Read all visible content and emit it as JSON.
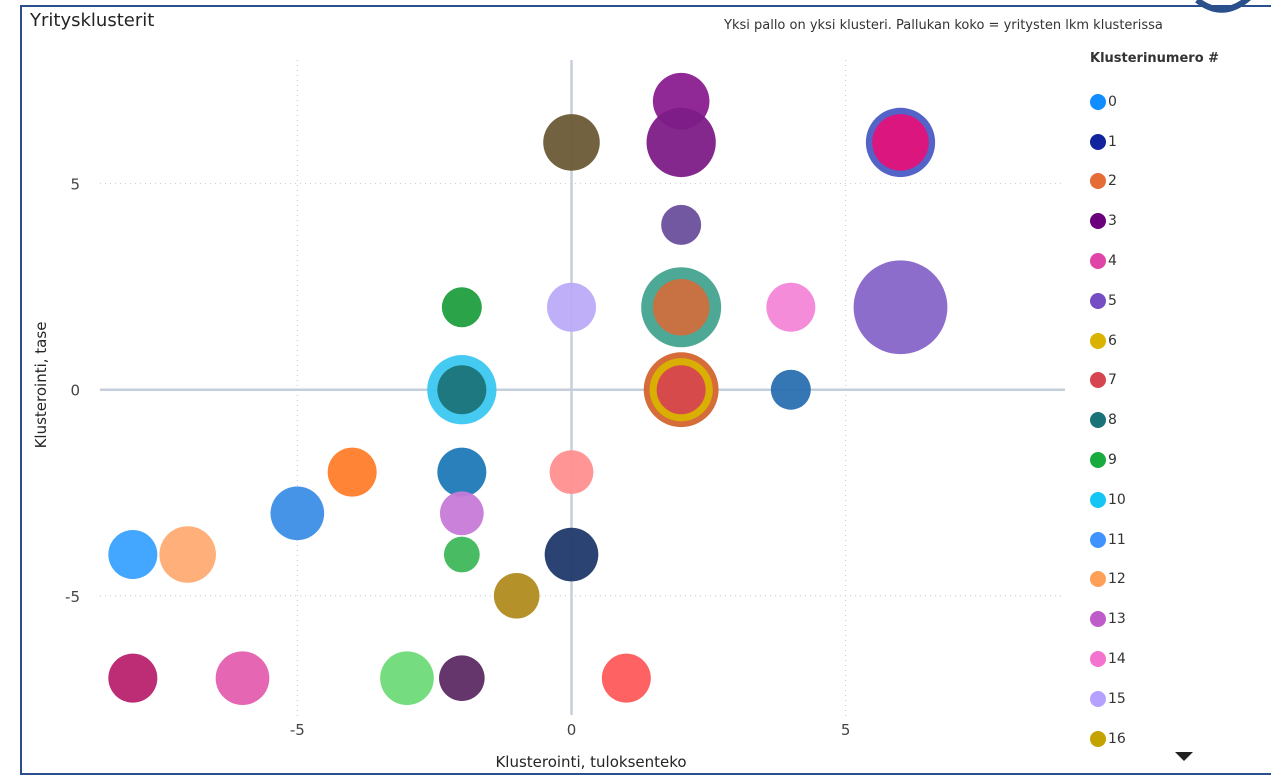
{
  "header": {
    "title": "Yritysklusterit",
    "subtitle": "Yksi pallo on yksi klusteri. Pallukan koko = yritysten lkm klusterissa"
  },
  "legend": {
    "title": "Klusterinumero #",
    "items": [
      {
        "label": "0",
        "color": "#118dff"
      },
      {
        "label": "1",
        "color": "#12239e"
      },
      {
        "label": "2",
        "color": "#e66c37"
      },
      {
        "label": "3",
        "color": "#6b007b"
      },
      {
        "label": "4",
        "color": "#e044a7"
      },
      {
        "label": "5",
        "color": "#744ec2"
      },
      {
        "label": "6",
        "color": "#d9b300"
      },
      {
        "label": "7",
        "color": "#d64550"
      },
      {
        "label": "8",
        "color": "#197278"
      },
      {
        "label": "9",
        "color": "#1aab40"
      },
      {
        "label": "10",
        "color": "#15c6f4"
      },
      {
        "label": "11",
        "color": "#4092ff"
      },
      {
        "label": "12",
        "color": "#ffa058"
      },
      {
        "label": "13",
        "color": "#be5dc9"
      },
      {
        "label": "14",
        "color": "#f472d0"
      },
      {
        "label": "15",
        "color": "#b5a1ff"
      },
      {
        "label": "16",
        "color": "#c4a200"
      }
    ],
    "more_icon": "caret-down-icon"
  },
  "chart_data": {
    "type": "scatter",
    "xlabel": "Klusterointi, tuloksenteko",
    "ylabel": "Klusterointi, tase",
    "xlim": [
      -9,
      9
    ],
    "ylim": [
      -8.5,
      8
    ],
    "xticks": [
      -5,
      0,
      5
    ],
    "yticks": [
      5,
      0,
      -5
    ],
    "grid": true,
    "legend_position": "right",
    "points": [
      {
        "x": 2,
        "y": 7,
        "size": 2,
        "color": "#8a1e8f"
      },
      {
        "x": 0,
        "y": 6,
        "size": 2,
        "color": "#6b5a36"
      },
      {
        "x": 2,
        "y": 6,
        "size": 3,
        "color": "#7d1c87"
      },
      {
        "x": 6,
        "y": 6,
        "size": 3,
        "color": "#4a5bc4"
      },
      {
        "x": 6,
        "y": 6,
        "size": 2,
        "color": "#e3127a"
      },
      {
        "x": 2,
        "y": 4,
        "size": 1,
        "color": "#6a4f9c"
      },
      {
        "x": -2,
        "y": 2,
        "size": 1,
        "color": "#1f9e3f"
      },
      {
        "x": 0,
        "y": 2,
        "size": 1.5,
        "color": "#bcaaf8"
      },
      {
        "x": 2,
        "y": 2,
        "size": 4,
        "color": "#43a48f"
      },
      {
        "x": 2,
        "y": 2,
        "size": 2,
        "color": "#cf6e3e"
      },
      {
        "x": 4,
        "y": 2,
        "size": 1.5,
        "color": "#f386d8"
      },
      {
        "x": 6,
        "y": 2,
        "size": 5.5,
        "color": "#8765c8"
      },
      {
        "x": -2,
        "y": 0,
        "size": 3,
        "color": "#3bc8f0"
      },
      {
        "x": -2,
        "y": 0,
        "size": 1.5,
        "color": "#1c7378"
      },
      {
        "x": 2,
        "y": 0,
        "size": 3.5,
        "color": "#d4642e"
      },
      {
        "x": 2,
        "y": 0,
        "size": 2.5,
        "color": "#d9b300"
      },
      {
        "x": 2,
        "y": 0,
        "size": 1.5,
        "color": "#d64550"
      },
      {
        "x": 4,
        "y": 0,
        "size": 1,
        "color": "#2a6fb0"
      },
      {
        "x": -4,
        "y": -2,
        "size": 1.5,
        "color": "#ff7d2a"
      },
      {
        "x": -2,
        "y": -2,
        "size": 1.5,
        "color": "#1f79b7"
      },
      {
        "x": 0,
        "y": -2,
        "size": 1.2,
        "color": "#ff8f8f"
      },
      {
        "x": -5,
        "y": -3,
        "size": 1.8,
        "color": "#3b8ee6"
      },
      {
        "x": -2,
        "y": -3,
        "size": 1.2,
        "color": "#c77ad8"
      },
      {
        "x": -8,
        "y": -4,
        "size": 1.5,
        "color": "#39a2ff"
      },
      {
        "x": -7,
        "y": -4,
        "size": 2,
        "color": "#ffab72"
      },
      {
        "x": -2,
        "y": -4,
        "size": 0.8,
        "color": "#3fb85b"
      },
      {
        "x": 0,
        "y": -4,
        "size": 1.8,
        "color": "#20396a"
      },
      {
        "x": -1,
        "y": -5,
        "size": 1.3,
        "color": "#b18b1f"
      },
      {
        "x": -8,
        "y": -7,
        "size": 1.5,
        "color": "#b8226e"
      },
      {
        "x": -6,
        "y": -7,
        "size": 1.8,
        "color": "#e45fb0"
      },
      {
        "x": -3,
        "y": -7,
        "size": 1.8,
        "color": "#6edb78"
      },
      {
        "x": -2,
        "y": -7,
        "size": 1.3,
        "color": "#5c2b63"
      },
      {
        "x": 1,
        "y": -7,
        "size": 1.5,
        "color": "#ff5a5a"
      }
    ]
  }
}
